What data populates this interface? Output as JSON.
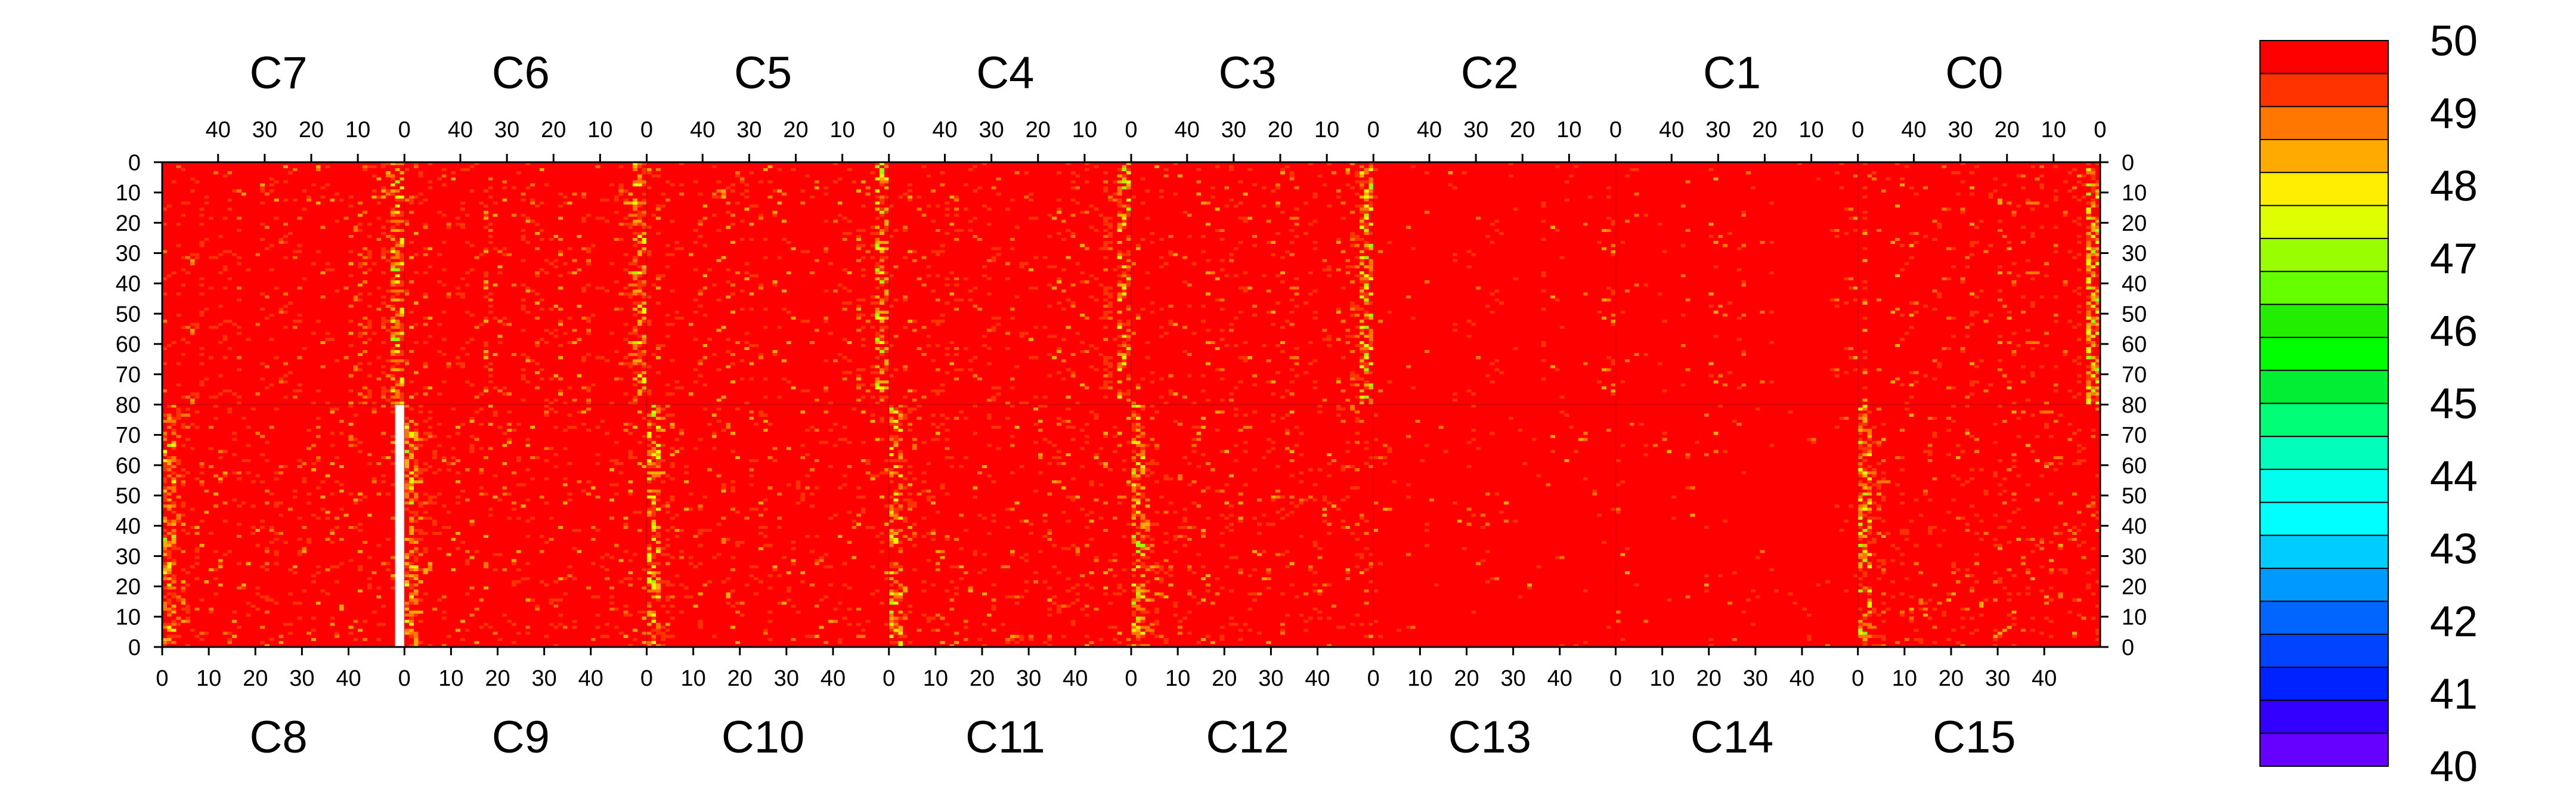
{
  "chart_data": {
    "type": "heatmap",
    "title": "",
    "top_chips": [
      "C7",
      "C6",
      "C5",
      "C4",
      "C3",
      "C2",
      "C1",
      "C0"
    ],
    "bottom_chips": [
      "C8",
      "C9",
      "C10",
      "C11",
      "C12",
      "C13",
      "C14",
      "C15"
    ],
    "columns_per_chip": 52,
    "rows_per_half": 80,
    "x_ticks_top": [
      "40",
      "30",
      "20",
      "10",
      "0"
    ],
    "x_ticks_bottom": [
      "0",
      "10",
      "20",
      "30",
      "40"
    ],
    "y_ticks_upper": [
      "0",
      "10",
      "20",
      "30",
      "40",
      "50",
      "60",
      "70",
      "80"
    ],
    "y_ticks_lower": [
      "70",
      "60",
      "50",
      "40",
      "30",
      "20",
      "10",
      "0"
    ],
    "colorbar": {
      "min": 40,
      "max": 50,
      "labels": [
        "50",
        "49",
        "48",
        "47",
        "46",
        "45",
        "44",
        "43",
        "42",
        "41",
        "40"
      ],
      "colors": [
        "#ff0000",
        "#ff3300",
        "#ff7700",
        "#ffaa00",
        "#ffee00",
        "#ddff00",
        "#99ff00",
        "#66ff00",
        "#22ee00",
        "#00ff00",
        "#00ee33",
        "#00ff77",
        "#00ffbb",
        "#00ffee",
        "#00ffff",
        "#00ccff",
        "#0099ff",
        "#0066ff",
        "#0044ff",
        "#0022ff",
        "#3300ff",
        "#6600ff"
      ]
    },
    "dominant_value": 50,
    "noisy_edge_columns": "columns near 0 of each chip",
    "dead_region": {
      "chip": "C8",
      "columns": [
        0,
        1
      ],
      "rows": [
        0,
        80
      ]
    }
  }
}
